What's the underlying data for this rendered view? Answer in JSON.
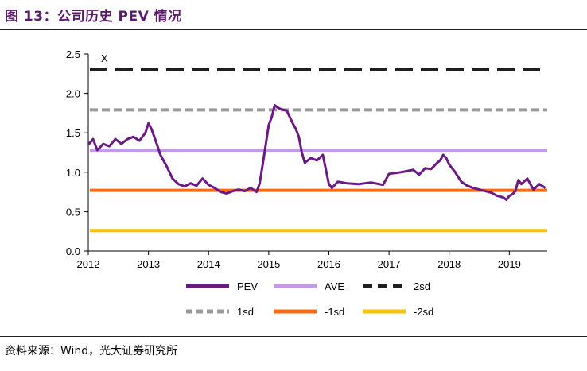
{
  "title": "图 13：公司历史 PEV 情况",
  "source": "资料来源：Wind，光大证券研究所",
  "colors": {
    "title": "#5b1a6e",
    "pev": "#6b1a84",
    "ave": "#c49ae6",
    "plus2sd": "#1f1f1f",
    "plus1sd": "#9a9a9a",
    "minus1sd": "#ff6a13",
    "minus2sd": "#f5c400"
  },
  "chart_data": {
    "type": "line",
    "ylim": [
      0,
      2.5
    ],
    "y_ticks": [
      "0.0",
      "0.5",
      "1.0",
      "1.5",
      "2.0",
      "2.5"
    ],
    "x_ticks": [
      "2012",
      "2013",
      "2014",
      "2015",
      "2016",
      "2017",
      "2018",
      "2019"
    ],
    "annotation": "X",
    "reference_lines": [
      {
        "name": "2sd",
        "value": 2.3,
        "style": "dash-thick",
        "color": "#1f1f1f"
      },
      {
        "name": "1sd",
        "value": 1.79,
        "style": "dash",
        "color": "#9a9a9a"
      },
      {
        "name": "AVE",
        "value": 1.28,
        "style": "solid",
        "color": "#c49ae6"
      },
      {
        "name": "-1sd",
        "value": 0.77,
        "style": "solid",
        "color": "#ff6a13"
      },
      {
        "name": "-2sd",
        "value": 0.26,
        "style": "solid",
        "color": "#f5c400"
      }
    ],
    "series": [
      {
        "name": "PEV",
        "color": "#6b1a84",
        "x": [
          2012.0,
          2012.08,
          2012.15,
          2012.25,
          2012.35,
          2012.45,
          2012.55,
          2012.65,
          2012.75,
          2012.85,
          2012.95,
          2013.0,
          2013.05,
          2013.12,
          2013.2,
          2013.3,
          2013.4,
          2013.5,
          2013.6,
          2013.7,
          2013.8,
          2013.9,
          2014.0,
          2014.1,
          2014.2,
          2014.3,
          2014.4,
          2014.5,
          2014.6,
          2014.7,
          2014.8,
          2014.85,
          2014.9,
          2014.95,
          2015.0,
          2015.05,
          2015.1,
          2015.15,
          2015.2,
          2015.3,
          2015.35,
          2015.4,
          2015.45,
          2015.5,
          2015.55,
          2015.6,
          2015.7,
          2015.8,
          2015.9,
          2016.0,
          2016.05,
          2016.15,
          2016.3,
          2016.5,
          2016.7,
          2016.9,
          2017.0,
          2017.2,
          2017.4,
          2017.5,
          2017.6,
          2017.7,
          2017.8,
          2017.85,
          2017.9,
          2017.95,
          2018.0,
          2018.1,
          2018.2,
          2018.3,
          2018.4,
          2018.5,
          2018.6,
          2018.7,
          2018.8,
          2018.9,
          2018.95,
          2019.0,
          2019.05,
          2019.1,
          2019.15,
          2019.2,
          2019.3,
          2019.4,
          2019.5,
          2019.6
        ],
        "values": [
          1.35,
          1.42,
          1.28,
          1.36,
          1.33,
          1.42,
          1.36,
          1.42,
          1.45,
          1.4,
          1.5,
          1.62,
          1.55,
          1.4,
          1.22,
          1.08,
          0.92,
          0.85,
          0.82,
          0.86,
          0.83,
          0.92,
          0.84,
          0.8,
          0.75,
          0.73,
          0.76,
          0.78,
          0.76,
          0.8,
          0.75,
          0.86,
          1.1,
          1.35,
          1.6,
          1.7,
          1.85,
          1.82,
          1.8,
          1.78,
          1.7,
          1.62,
          1.55,
          1.45,
          1.25,
          1.12,
          1.18,
          1.15,
          1.22,
          0.85,
          0.8,
          0.88,
          0.86,
          0.85,
          0.87,
          0.84,
          0.98,
          1.0,
          1.03,
          0.97,
          1.05,
          1.04,
          1.12,
          1.15,
          1.22,
          1.18,
          1.1,
          1.0,
          0.88,
          0.83,
          0.8,
          0.78,
          0.76,
          0.74,
          0.7,
          0.68,
          0.65,
          0.7,
          0.72,
          0.76,
          0.9,
          0.85,
          0.92,
          0.78,
          0.85,
          0.8
        ]
      }
    ],
    "legend": {
      "placement": "bottom",
      "rows": [
        [
          "PEV",
          "AVE",
          "2sd"
        ],
        [
          "1sd",
          "-1sd",
          "-2sd"
        ]
      ]
    }
  }
}
